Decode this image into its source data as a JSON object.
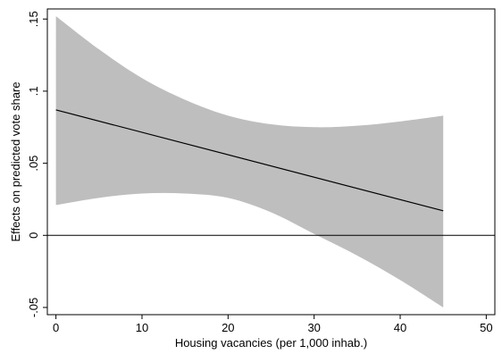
{
  "chart_data": {
    "type": "line",
    "title": "",
    "xlabel": "Housing vacancies (per 1,000 inhab.)",
    "ylabel": "Effects on predicted vote share",
    "xlim": [
      -1,
      51
    ],
    "ylim": [
      -0.055,
      0.157
    ],
    "x_ticks": [
      0,
      10,
      20,
      30,
      40,
      50
    ],
    "x_tick_labels": [
      "0",
      "10",
      "20",
      "30",
      "40",
      "50"
    ],
    "y_ticks": [
      -0.05,
      0,
      0.05,
      0.1,
      0.15
    ],
    "y_tick_labels": [
      "-.05",
      "0",
      ".05",
      ".1",
      ".15"
    ],
    "reference_line_y": 0,
    "grid": false,
    "series": [
      {
        "role": "estimate",
        "color": "#000000",
        "x": [
          0,
          45
        ],
        "y": [
          0.087,
          0.017
        ]
      },
      {
        "role": "confidence_band",
        "color": "#bebebe",
        "x": [
          0,
          5,
          10,
          15,
          20,
          25,
          30,
          35,
          40,
          45
        ],
        "upper": [
          0.152,
          0.129,
          0.109,
          0.094,
          0.083,
          0.077,
          0.075,
          0.076,
          0.079,
          0.083
        ],
        "lower": [
          0.021,
          0.026,
          0.029,
          0.029,
          0.026,
          0.016,
          0.001,
          -0.014,
          -0.031,
          -0.05
        ]
      }
    ]
  }
}
